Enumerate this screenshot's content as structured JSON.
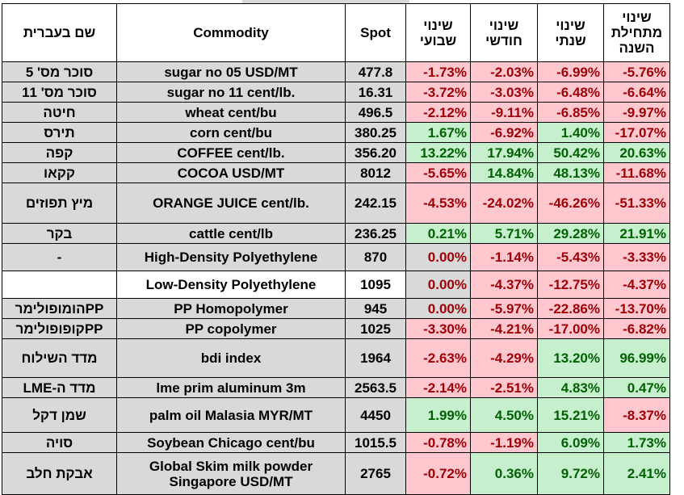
{
  "colors": {
    "negative_fill": "#ffc7ce",
    "negative_text": "#9c0006",
    "positive_fill": "#c6efce",
    "positive_text": "#006100",
    "row_gray": "#d9d9d9"
  },
  "headers": {
    "hebrew_name": "שם בעברית",
    "commodity": "Commodity",
    "spot": "Spot",
    "weekly": "שינוי שבועי",
    "monthly": "שינוי חודשי",
    "yearly": "שינוי שנתי",
    "ytd": "שינוי מתחילת השנה"
  },
  "rows": [
    {
      "hebrew": "סוכר מס' 5",
      "commodity": "sugar no 05 USD/MT",
      "spot": "477.8",
      "weekly": "-1.73%",
      "monthly": "-2.03%",
      "yearly": "-6.99%",
      "ytd": "-5.76%"
    },
    {
      "hebrew": "סוכר מס' 11",
      "commodity": "sugar no 11 cent/lb.",
      "spot": "16.31",
      "weekly": "-3.72%",
      "monthly": "-3.03%",
      "yearly": "-6.48%",
      "ytd": "-6.64%"
    },
    {
      "hebrew": "חיטה",
      "commodity": "wheat cent/bu",
      "spot": "496.5",
      "weekly": "-2.12%",
      "monthly": "-9.11%",
      "yearly": "-6.85%",
      "ytd": "-9.97%"
    },
    {
      "hebrew": "תירס",
      "commodity": "corn cent/bu",
      "spot": "380.25",
      "weekly": "1.67%",
      "monthly": "-6.92%",
      "yearly": "1.40%",
      "ytd": "-17.07%"
    },
    {
      "hebrew": "קפה",
      "commodity": "COFFEE cent/lb.",
      "spot": "356.20",
      "weekly": "13.22%",
      "monthly": "17.94%",
      "yearly": "50.42%",
      "ytd": "20.63%"
    },
    {
      "hebrew": "קקאו",
      "commodity": "COCOA USD/MT",
      "spot": "8012",
      "weekly": "-5.65%",
      "monthly": "14.84%",
      "yearly": "48.13%",
      "ytd": "-11.68%"
    },
    {
      "hebrew": "מיץ תפוזים",
      "commodity": "ORANGE JUICE cent/lb.",
      "spot": "242.15",
      "weekly": "-4.53%",
      "monthly": "-24.02%",
      "yearly": "-46.26%",
      "ytd": "-51.33%"
    },
    {
      "hebrew": "בקר",
      "commodity": "cattle cent/lb",
      "spot": "236.25",
      "weekly": "0.21%",
      "monthly": "5.71%",
      "yearly": "29.28%",
      "ytd": "21.91%"
    },
    {
      "hebrew": "-",
      "commodity": "High-Density Polyethylene",
      "spot": "870",
      "weekly": "0.00%",
      "monthly": "-1.14%",
      "yearly": "-5.43%",
      "ytd": "-3.33%"
    },
    {
      "hebrew": "",
      "commodity": "Low-Density Polyethylene",
      "spot": "1095",
      "weekly": "0.00%",
      "monthly": "-4.37%",
      "yearly": "-12.75%",
      "ytd": "-4.37%"
    },
    {
      "hebrew": "PPהומופולימר",
      "commodity": "PP Homopolymer",
      "spot": "945",
      "weekly": "0.00%",
      "monthly": "-5.97%",
      "yearly": "-22.86%",
      "ytd": "-13.70%"
    },
    {
      "hebrew": "PPקופופולימר",
      "commodity": "PP copolymer",
      "spot": "1025",
      "weekly": "-3.30%",
      "monthly": "-4.21%",
      "yearly": "-17.00%",
      "ytd": "-6.82%"
    },
    {
      "hebrew": "מדד השילוח",
      "commodity": "bdi index",
      "spot": "1964",
      "weekly": "-2.63%",
      "monthly": "-4.29%",
      "yearly": "13.20%",
      "ytd": "96.99%"
    },
    {
      "hebrew": "מדד ה-LME",
      "commodity": "lme prim aluminum 3m",
      "spot": "2563.5",
      "weekly": "-2.14%",
      "monthly": "-2.51%",
      "yearly": "4.83%",
      "ytd": "0.47%"
    },
    {
      "hebrew": "שמן דקל",
      "commodity": "palm oil Malasia MYR/MT",
      "spot": "4450",
      "weekly": "1.99%",
      "monthly": "4.50%",
      "yearly": "15.21%",
      "ytd": "-8.37%"
    },
    {
      "hebrew": "סויה",
      "commodity": "Soybean Chicago cent/bu",
      "spot": "1015.5",
      "weekly": "-0.78%",
      "monthly": "-1.19%",
      "yearly": "6.09%",
      "ytd": "1.73%"
    },
    {
      "hebrew": "אבקת חלב",
      "commodity": "Global Skim milk powder Singapore USD/MT",
      "spot": "2765",
      "weekly": "-0.72%",
      "monthly": "0.36%",
      "yearly": "9.72%",
      "ytd": "2.41%"
    }
  ]
}
